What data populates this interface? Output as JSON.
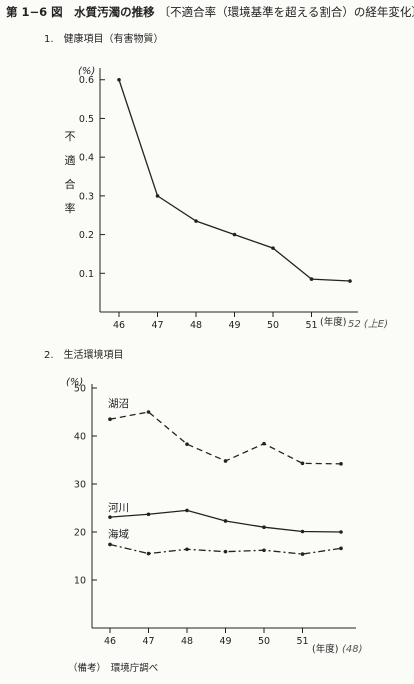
{
  "figure": {
    "title": "第 1−6 図　水質汚濁の推移",
    "subtitle": "〔不適合率（環境基準を超える割合）の経年変化〕",
    "note": "（備考）　環境庁調べ"
  },
  "chart_data": [
    {
      "type": "line",
      "section": "1.　健康項目（有害物質）",
      "unit": "(%)",
      "ylabel": "不適合率",
      "xlabel": "(年度)",
      "handwritten": "52 (上E)",
      "categories": [
        "46",
        "47",
        "48",
        "49",
        "50",
        "51"
      ],
      "x": [
        46,
        47,
        48,
        49,
        50,
        51,
        52
      ],
      "ylim": [
        0,
        0.62
      ],
      "yticks": [
        "0.6",
        "0.5",
        "0.4",
        "0.3",
        "0.2",
        "0.1"
      ],
      "series": [
        {
          "name": "",
          "style": "solid",
          "values": [
            0.6,
            0.3,
            0.235,
            0.2,
            0.165,
            0.085,
            0.08
          ]
        }
      ]
    },
    {
      "type": "line",
      "section": "2.　生活環境項目",
      "unit": "(%)",
      "xlabel": "(年度)",
      "handwritten": "(48)",
      "categories": [
        "46",
        "47",
        "48",
        "49",
        "50",
        "51"
      ],
      "x": [
        46,
        47,
        48,
        49,
        50,
        51,
        52
      ],
      "ylim": [
        0,
        50
      ],
      "yticks": [
        "50",
        "40",
        "30",
        "20",
        "10"
      ],
      "series": [
        {
          "name": "湖沼",
          "style": "dashed",
          "values": [
            43.5,
            45.0,
            38.3,
            34.8,
            38.4,
            34.3,
            34.2
          ]
        },
        {
          "name": "河川",
          "style": "solid",
          "values": [
            23.1,
            23.7,
            24.5,
            22.3,
            21.0,
            20.1,
            20.0
          ]
        },
        {
          "name": "海域",
          "style": "dashdot",
          "values": [
            17.4,
            15.5,
            16.4,
            15.9,
            16.2,
            15.4,
            16.6
          ]
        }
      ]
    }
  ]
}
